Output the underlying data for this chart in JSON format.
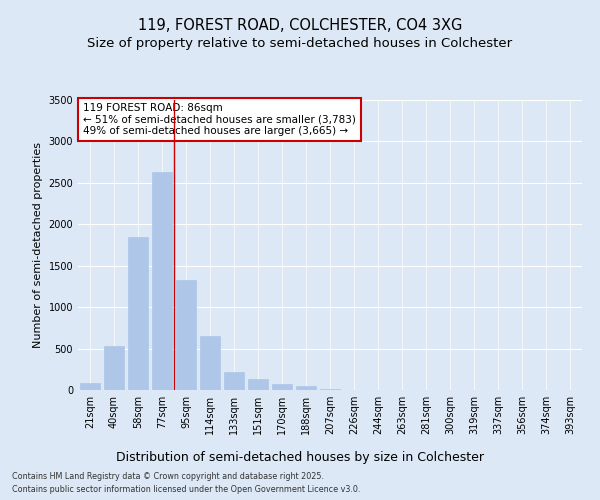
{
  "title1": "119, FOREST ROAD, COLCHESTER, CO4 3XG",
  "title2": "Size of property relative to semi-detached houses in Colchester",
  "xlabel": "Distribution of semi-detached houses by size in Colchester",
  "ylabel": "Number of semi-detached properties",
  "categories": [
    "21sqm",
    "40sqm",
    "58sqm",
    "77sqm",
    "95sqm",
    "114sqm",
    "133sqm",
    "151sqm",
    "170sqm",
    "188sqm",
    "207sqm",
    "226sqm",
    "244sqm",
    "263sqm",
    "281sqm",
    "300sqm",
    "319sqm",
    "337sqm",
    "356sqm",
    "374sqm",
    "393sqm"
  ],
  "values": [
    80,
    530,
    1850,
    2630,
    1330,
    650,
    220,
    130,
    75,
    45,
    10,
    0,
    0,
    0,
    0,
    0,
    0,
    0,
    0,
    0,
    0
  ],
  "bar_color": "#aec6e8",
  "bar_edge_color": "#aec6e8",
  "annotation_title": "119 FOREST ROAD: 86sqm",
  "annotation_line1": "← 51% of semi-detached houses are smaller (3,783)",
  "annotation_line2": "49% of semi-detached houses are larger (3,665) →",
  "annotation_box_color": "#ffffff",
  "annotation_box_edge": "#cc0000",
  "vline_color": "#cc0000",
  "vline_x": 3.5,
  "ylim": [
    0,
    3500
  ],
  "yticks": [
    0,
    500,
    1000,
    1500,
    2000,
    2500,
    3000,
    3500
  ],
  "background_color": "#dce8f5",
  "plot_bg_color": "#dce8f5",
  "footer1": "Contains HM Land Registry data © Crown copyright and database right 2025.",
  "footer2": "Contains public sector information licensed under the Open Government Licence v3.0.",
  "title_fontsize": 10.5,
  "subtitle_fontsize": 9.5,
  "tick_fontsize": 7,
  "ylabel_fontsize": 8,
  "xlabel_fontsize": 9
}
